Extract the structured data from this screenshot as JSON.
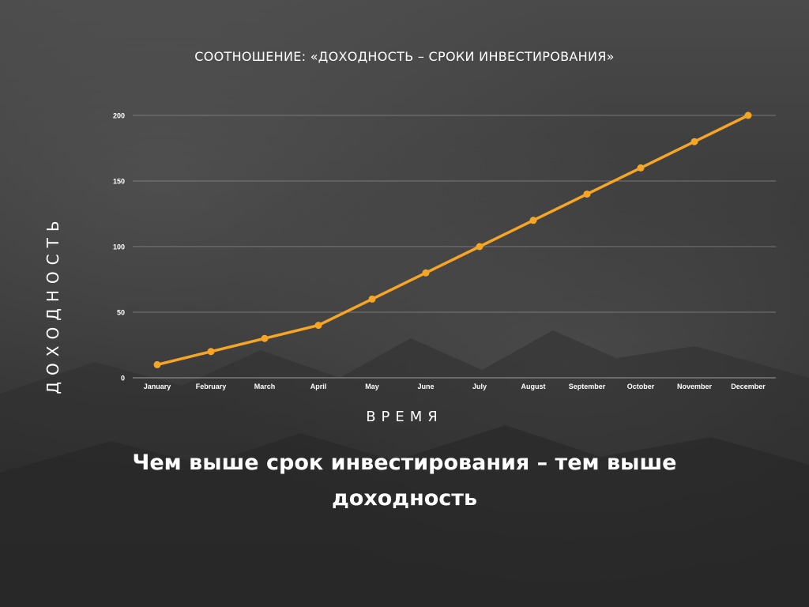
{
  "chart_data": {
    "type": "line",
    "title": "СООТНОШЕНИЕ: «ДОХОДНОСТЬ – СРОКИ ИНВЕСТИРОВАНИЯ»",
    "xlabel": "ВРЕМЯ",
    "ylabel": "ДОХОДНОСТЬ",
    "categories": [
      "January",
      "February",
      "March",
      "April",
      "May",
      "June",
      "July",
      "August",
      "September",
      "October",
      "November",
      "December"
    ],
    "series": [
      {
        "values": [
          10,
          20,
          30,
          40,
          60,
          80,
          100,
          120,
          140,
          160,
          180,
          200
        ],
        "color": "#f6a623"
      }
    ],
    "ylim": [
      0,
      200
    ],
    "yticks": [
      0,
      50,
      100,
      150,
      200
    ],
    "grid": true,
    "legend": "none"
  },
  "caption": "Чем выше срок инвестирования – тем выше доходность",
  "colors": {
    "line": "#f6a623",
    "grid": "#8a8a8a",
    "text": "#ffffff"
  }
}
